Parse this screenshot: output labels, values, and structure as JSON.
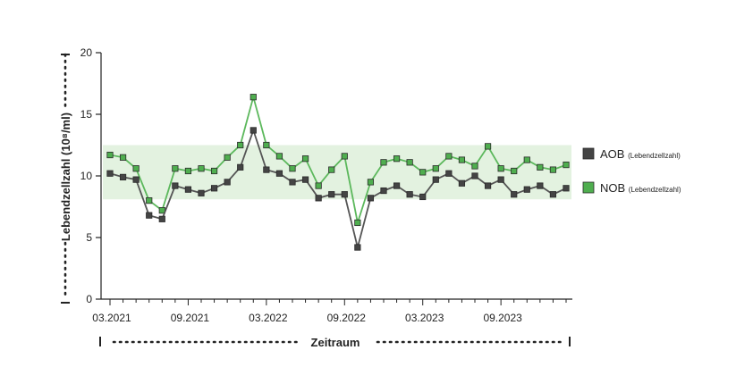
{
  "chart_data": {
    "type": "line",
    "title": "",
    "xlabel": "Zeitraum",
    "ylabel": "Lebendzellzahl (10⁸/ml)",
    "ylim": [
      0,
      20
    ],
    "yticks": [
      0,
      5,
      10,
      15,
      20
    ],
    "x_tick_labels": [
      "03.2021",
      "09.2021",
      "03.2022",
      "09.2022",
      "03.2023",
      "09.2023"
    ],
    "x_tick_indices": [
      0,
      6,
      12,
      18,
      24,
      30
    ],
    "reference_band": {
      "from": 8.1,
      "to": 12.5,
      "color": "#e3f2e0"
    },
    "grid": false,
    "legend_position": "right",
    "x": [
      "03.2021",
      "04.2021",
      "05.2021",
      "06.2021",
      "07.2021",
      "08.2021",
      "09.2021",
      "10.2021",
      "11.2021",
      "12.2021",
      "01.2022",
      "02.2022",
      "03.2022",
      "04.2022",
      "05.2022",
      "06.2022",
      "07.2022",
      "08.2022",
      "09.2022",
      "10.2022",
      "11.2022",
      "12.2022",
      "01.2023",
      "02.2023",
      "03.2023",
      "04.2023",
      "05.2023",
      "06.2023",
      "07.2023",
      "08.2023",
      "09.2023",
      "10.2023",
      "11.2023",
      "12.2023",
      "01.2024",
      "02.2024"
    ],
    "series": [
      {
        "name": "AOB",
        "name_sub": "(Lebendzellzahl)",
        "color": "#555555",
        "marker_color": "#444444",
        "values": [
          10.2,
          9.9,
          9.7,
          6.8,
          6.5,
          9.2,
          8.9,
          8.6,
          9.0,
          9.5,
          10.7,
          13.7,
          10.5,
          10.2,
          9.5,
          9.7,
          8.2,
          8.5,
          8.5,
          4.2,
          8.2,
          8.8,
          9.2,
          8.5,
          8.3,
          9.7,
          10.2,
          9.4,
          10.0,
          9.2,
          9.7,
          8.5,
          8.9,
          9.2,
          8.5,
          9.0
        ]
      },
      {
        "name": "NOB",
        "name_sub": "(Lebendzellzahl)",
        "color": "#5cb85c",
        "marker_color": "#4fae4f",
        "values": [
          11.7,
          11.5,
          10.6,
          8.0,
          7.2,
          10.6,
          10.4,
          10.6,
          10.4,
          11.5,
          12.5,
          16.4,
          12.5,
          11.6,
          10.6,
          11.4,
          9.2,
          10.5,
          11.6,
          6.2,
          9.5,
          11.1,
          11.4,
          11.1,
          10.3,
          10.6,
          11.6,
          11.3,
          10.8,
          12.4,
          10.6,
          10.4,
          11.3,
          10.7,
          10.5,
          10.9
        ]
      }
    ]
  }
}
